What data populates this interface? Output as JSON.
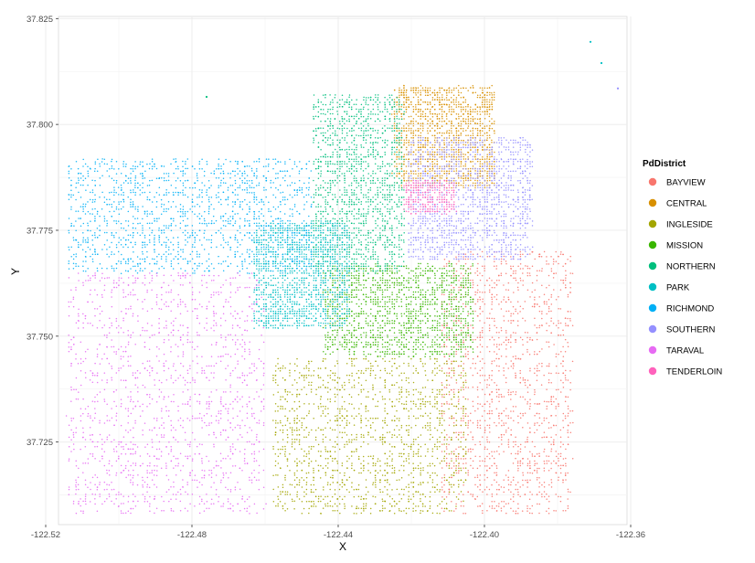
{
  "chart_data": {
    "type": "scatter",
    "xlabel": "X",
    "ylabel": "Y",
    "xlim": [
      -122.5165,
      -122.361
    ],
    "ylim": [
      37.7055,
      37.8255
    ],
    "x_ticks": [
      -122.52,
      -122.48,
      -122.44,
      -122.4,
      -122.36
    ],
    "x_tick_labels": [
      "-122.52",
      "-122.48",
      "-122.44",
      "-122.40",
      "-122.36"
    ],
    "y_ticks": [
      37.725,
      37.75,
      37.775,
      37.8,
      37.825
    ],
    "y_tick_labels": [
      "37.725",
      "37.750",
      "37.775",
      "37.800",
      "37.825"
    ],
    "grid": true,
    "legend": {
      "title": "PdDistrict",
      "position": "right",
      "entries": [
        "BAYVIEW",
        "CENTRAL",
        "INGLESIDE",
        "MISSION",
        "NORTHERN",
        "PARK",
        "RICHMOND",
        "SOUTHERN",
        "TARAVAL",
        "TENDERLOIN"
      ]
    },
    "colors": {
      "BAYVIEW": "#F8766D",
      "CENTRAL": "#D89000",
      "INGLESIDE": "#A3A500",
      "MISSION": "#39B600",
      "NORTHERN": "#00BF7D",
      "PARK": "#00BFC4",
      "RICHMOND": "#00B0F6",
      "SOUTHERN": "#9590FF",
      "TARAVAL": "#E76BF3",
      "TENDERLOIN": "#FF62BC"
    },
    "series": [
      {
        "name": "BAYVIEW",
        "x_range": [
          -122.412,
          -122.376
        ],
        "y_range": [
          37.708,
          37.77
        ]
      },
      {
        "name": "CENTRAL",
        "x_range": [
          -122.425,
          -122.397
        ],
        "y_range": [
          37.785,
          37.809
        ]
      },
      {
        "name": "INGLESIDE",
        "x_range": [
          -122.458,
          -122.405
        ],
        "y_range": [
          37.708,
          37.745
        ]
      },
      {
        "name": "MISSION",
        "x_range": [
          -122.444,
          -122.403
        ],
        "y_range": [
          37.745,
          37.767
        ]
      },
      {
        "name": "NORTHERN",
        "x_range": [
          -122.447,
          -122.422
        ],
        "y_range": [
          37.765,
          37.807
        ]
      },
      {
        "name": "PARK",
        "x_range": [
          -122.463,
          -122.437
        ],
        "y_range": [
          37.752,
          37.777
        ]
      },
      {
        "name": "RICHMOND",
        "x_range": [
          -122.514,
          -122.447
        ],
        "y_range": [
          37.765,
          37.792
        ]
      },
      {
        "name": "SOUTHERN",
        "x_range": [
          -122.421,
          -122.387
        ],
        "y_range": [
          37.768,
          37.797
        ]
      },
      {
        "name": "TARAVAL",
        "x_range": [
          -122.514,
          -122.46
        ],
        "y_range": [
          37.708,
          37.765
        ]
      },
      {
        "name": "TENDERLOIN",
        "x_range": [
          -122.422,
          -122.408
        ],
        "y_range": [
          37.779,
          37.787
        ]
      }
    ]
  }
}
